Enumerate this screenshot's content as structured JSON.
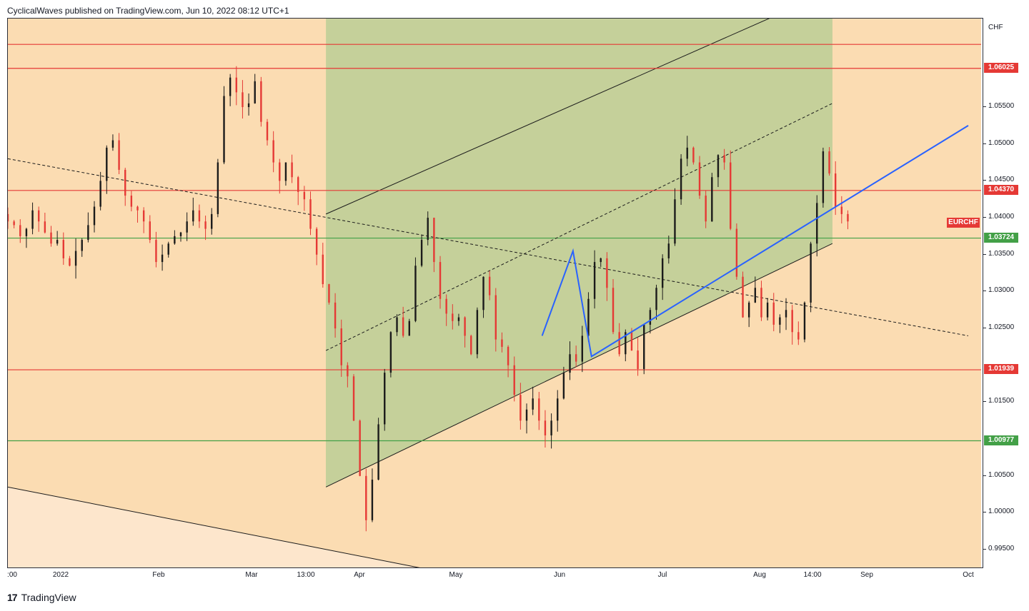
{
  "header": {
    "published_by": "CyclicalWaves published on TradingView.com, Jun 10, 2022 08:12 UTC+1"
  },
  "footer": {
    "logo_mark": "17",
    "logo_text": "TradingView"
  },
  "chart_data": {
    "type": "candlestick",
    "symbol": "EURCHF",
    "currency": "CHF",
    "y_range": [
      0.9925,
      1.067
    ],
    "y_ticks": [
      "1.05500",
      "1.05000",
      "1.04500",
      "1.04000",
      "1.03500",
      "1.03000",
      "1.02500",
      "1.01500",
      "1.00500",
      "1.00000",
      "0.99500"
    ],
    "y_tick_values": [
      1.055,
      1.05,
      1.045,
      1.04,
      1.035,
      1.03,
      1.025,
      1.015,
      1.005,
      1.0,
      0.995
    ],
    "x_ticks": [
      ":00",
      "2022",
      "Feb",
      "Mar",
      "13:00",
      "Apr",
      "May",
      "Jun",
      "Jul",
      "Aug",
      "14:00",
      "Sep",
      "Oct"
    ],
    "horizontal_levels": [
      {
        "value": 1.0635,
        "color": "#e53935",
        "label": ""
      },
      {
        "value": 1.06025,
        "color": "#e53935",
        "label": "1.06025"
      },
      {
        "value": 1.0437,
        "color": "#e53935",
        "label": "1.04370"
      },
      {
        "value": 1.03724,
        "color": "#43a047",
        "label": "1.03724"
      },
      {
        "value": 1.01939,
        "color": "#e53935",
        "label": "1.01939"
      },
      {
        "value": 1.00977,
        "color": "#43a047",
        "label": "1.00977"
      }
    ],
    "symbol_tag": {
      "label": "EURCHF",
      "value": 1.0392,
      "color": "#e53935"
    },
    "channel": {
      "upper": [
        [
          "2022-03-14",
          1.0405
        ],
        [
          "2022-08-25",
          1.0708
        ]
      ],
      "lower": [
        [
          "2022-03-14",
          1.0035
        ],
        [
          "2022-08-25",
          1.0365
        ]
      ],
      "fill": "#c5d09a"
    },
    "midline_dashed": [
      [
        "2022-03-14",
        1.022
      ],
      [
        "2022-08-25",
        1.0555
      ]
    ],
    "descending_dashed": [
      [
        "2021-12-01",
        1.048
      ],
      [
        "2022-10-08",
        1.024
      ]
    ],
    "long_trend_line": [
      [
        "2021-12-01",
        1.0035
      ],
      [
        "2022-04-14",
        0.9925
      ]
    ],
    "blue_path": [
      [
        "2022-05-23",
        1.024
      ],
      [
        "2022-06-02",
        1.0355
      ],
      [
        "2022-06-08",
        1.0212
      ],
      [
        "2022-10-08",
        1.0525
      ]
    ],
    "price_series": {
      "start": "2021-12-01",
      "step_days": 2,
      "close": [
        1.0395,
        1.039,
        1.0375,
        1.0385,
        1.041,
        1.0395,
        1.038,
        1.0365,
        1.037,
        1.0345,
        1.0335,
        1.0355,
        1.037,
        1.039,
        1.0415,
        1.045,
        1.0495,
        1.0505,
        1.0465,
        1.043,
        1.0415,
        1.041,
        1.0395,
        1.037,
        1.034,
        1.035,
        1.0365,
        1.0375,
        1.038,
        1.0395,
        1.041,
        1.0395,
        1.0385,
        1.0405,
        1.0475,
        1.0565,
        1.059,
        1.057,
        1.055,
        1.0555,
        1.0585,
        1.053,
        1.0505,
        1.0475,
        1.045,
        1.0475,
        1.0455,
        1.0435,
        1.0425,
        1.0385,
        1.035,
        1.031,
        1.0285,
        1.025,
        1.02,
        1.0185,
        1.0125,
        1.005,
        0.999,
        1.0045,
        1.012,
        1.019,
        1.0245,
        1.0265,
        1.024,
        1.026,
        1.0335,
        1.037,
        1.04,
        1.034,
        1.029,
        1.027,
        1.026,
        1.0265,
        1.024,
        1.0215,
        1.0275,
        1.032,
        1.0295,
        1.0235,
        1.0225,
        1.02,
        1.016,
        1.0125,
        1.014,
        1.0155,
        1.0125,
        1.0105,
        1.0125,
        1.0155,
        1.019,
        1.0215,
        1.0205,
        1.024,
        1.029,
        1.034,
        1.0345,
        1.0305,
        1.0245,
        1.0215,
        1.0245,
        1.022,
        1.0195,
        1.0255,
        1.0275,
        1.0305,
        1.0345,
        1.0365,
        1.0425,
        1.048,
        1.0495,
        1.0475,
        1.043,
        1.0395,
        1.0455,
        1.0485,
        1.0475,
        1.0385,
        1.032,
        1.0265,
        1.0285,
        1.0305,
        1.0265,
        1.0285,
        1.0255,
        1.0265,
        1.0275,
        1.0245,
        1.0235,
        1.0285,
        1.0365,
        1.042,
        1.049,
        1.046,
        1.0415,
        1.0405,
        1.0395
      ]
    }
  }
}
